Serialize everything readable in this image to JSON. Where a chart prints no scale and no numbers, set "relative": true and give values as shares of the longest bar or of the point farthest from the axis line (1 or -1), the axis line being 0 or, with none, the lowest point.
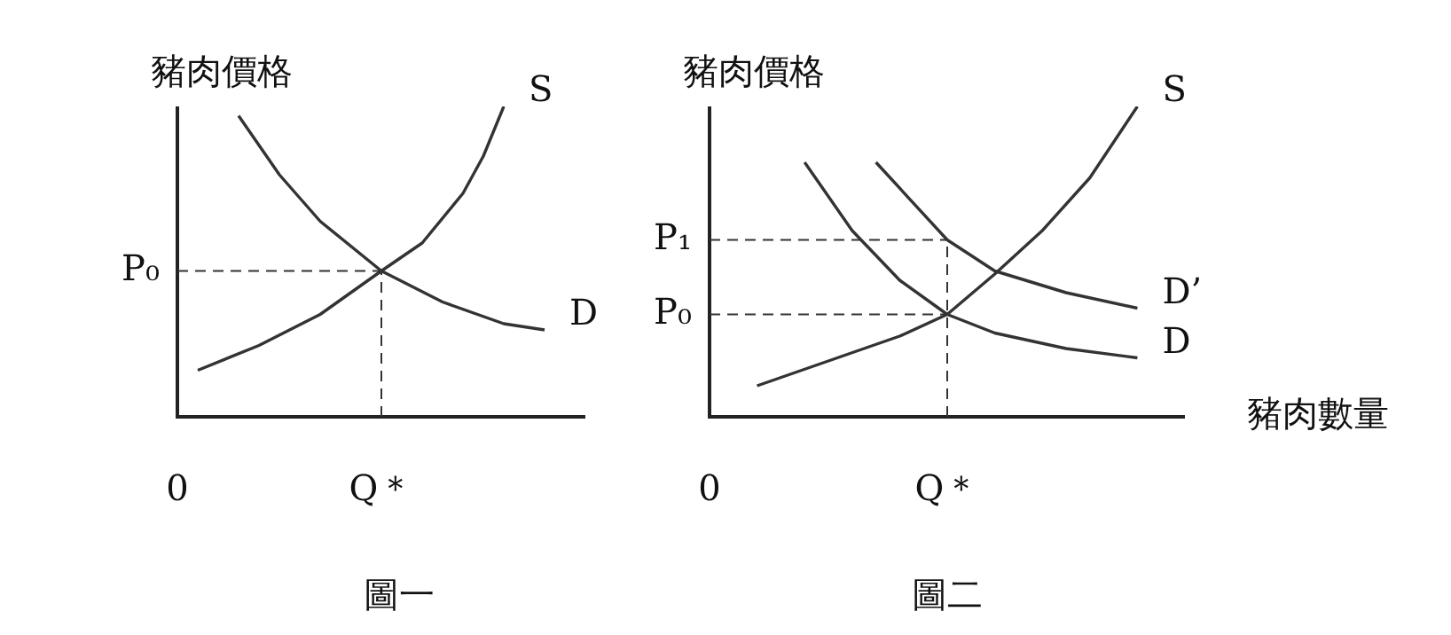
{
  "chart_data": [
    {
      "type": "line",
      "title": "圖一",
      "ylabel": "豬肉價格",
      "relative": true,
      "tick_labels": "x",
      "legend": false,
      "marker": "none",
      "categories": [
        "0",
        null,
        null,
        null,
        null,
        null,
        null,
        null,
        null,
        null,
        "Q＊",
        null,
        null,
        null,
        null,
        null,
        null,
        null,
        null,
        null,
        null
      ],
      "series": [
        {
          "name": "D",
          "color": "#333333",
          "values": [
            null,
            null,
            null,
            0.97,
            null,
            0.78,
            null,
            0.63,
            null,
            null,
            0.47,
            null,
            null,
            0.37,
            null,
            null,
            0.3,
            null,
            0.28,
            null,
            null
          ]
        },
        {
          "name": "S",
          "color": "#333333",
          "values": [
            null,
            0.15,
            null,
            null,
            0.23,
            null,
            null,
            0.33,
            null,
            null,
            0.47,
            null,
            0.56,
            null,
            0.72,
            0.84,
            1.0,
            null,
            null,
            null,
            null
          ]
        }
      ],
      "ref_lines": [
        {
          "axis": "y",
          "value": 0.47,
          "label": "P₀",
          "line_style": "dashed"
        },
        {
          "axis": "x",
          "value": "Q＊",
          "line_style": "dashed"
        }
      ]
    },
    {
      "type": "line",
      "title": "圖二",
      "ylabel": "豬肉價格",
      "xlabel": "豬肉數量",
      "relative": true,
      "tick_labels": "x",
      "legend": false,
      "marker": "none",
      "categories": [
        "0",
        null,
        null,
        null,
        null,
        null,
        null,
        null,
        null,
        null,
        "Q＊",
        null,
        null,
        null,
        null,
        null,
        null,
        null,
        null,
        null,
        null
      ],
      "series": [
        {
          "name": "S",
          "color": "#333333",
          "values": [
            null,
            null,
            0.1,
            null,
            null,
            0.18,
            null,
            null,
            0.26,
            null,
            0.33,
            null,
            0.46,
            null,
            0.6,
            null,
            0.77,
            null,
            1.0,
            null,
            null
          ]
        },
        {
          "name": "D’",
          "color": "#333333",
          "values": [
            null,
            null,
            null,
            null,
            null,
            null,
            null,
            0.82,
            null,
            null,
            0.57,
            null,
            0.47,
            null,
            null,
            0.4,
            null,
            null,
            0.35,
            null,
            null
          ]
        },
        {
          "name": "D",
          "color": "#333333",
          "values": [
            null,
            null,
            null,
            null,
            0.82,
            null,
            0.6,
            null,
            0.44,
            null,
            0.33,
            null,
            0.27,
            null,
            null,
            0.22,
            null,
            null,
            0.19,
            null,
            null
          ]
        }
      ],
      "ref_lines": [
        {
          "axis": "y",
          "value": 0.57,
          "label": "P₁",
          "line_style": "dashed"
        },
        {
          "axis": "y",
          "value": 0.33,
          "label": "P₀",
          "line_style": "dashed"
        },
        {
          "axis": "x",
          "value": "Q＊",
          "line_style": "dashed"
        }
      ]
    }
  ]
}
